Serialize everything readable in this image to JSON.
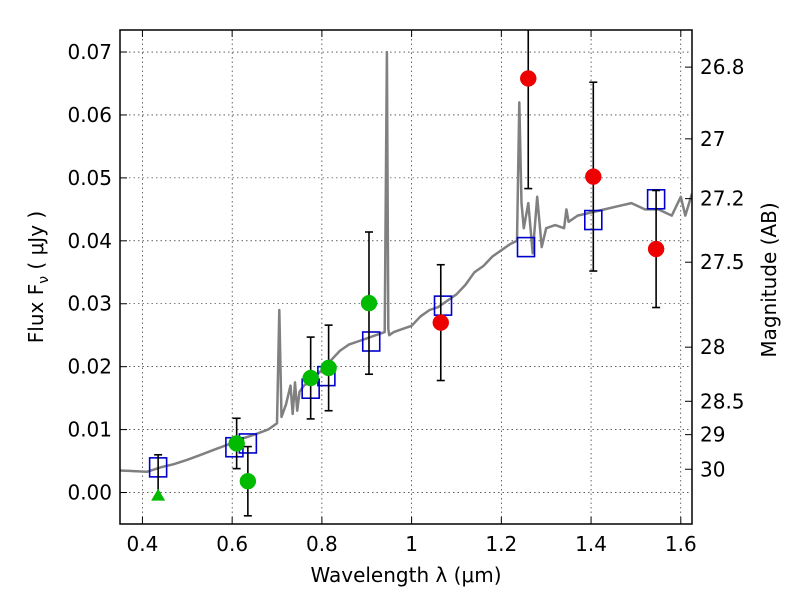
{
  "chart_data": {
    "type": "scatter",
    "xlabel": "Wavelength  λ (μm)",
    "ylabel": "Flux  F",
    "ylabel_sub": "ν",
    "ylabel_unit": "  ( μJy )",
    "y2label": "Magnitude (AB)",
    "xlim": [
      0.35,
      1.625
    ],
    "ylim": [
      -0.005,
      0.0735
    ],
    "grid": true,
    "x_ticks": [
      0.4,
      0.6,
      0.8,
      1.0,
      1.2,
      1.4,
      1.6
    ],
    "x_tick_labels": [
      "0.4",
      "0.6",
      "0.8",
      "1",
      "1.2",
      "1.4",
      "1.6"
    ],
    "y_ticks": [
      0.0,
      0.01,
      0.02,
      0.03,
      0.04,
      0.05,
      0.06,
      0.07
    ],
    "y_tick_labels": [
      "0.00",
      "0.01",
      "0.02",
      "0.03",
      "0.04",
      "0.05",
      "0.06",
      "0.07"
    ],
    "y2_ticks": [
      {
        "flux": 0.0676,
        "label": "26.8"
      },
      {
        "flux": 0.0562,
        "label": "27"
      },
      {
        "flux": 0.0467,
        "label": "27.2"
      },
      {
        "flux": 0.0366,
        "label": "27.5"
      },
      {
        "flux": 0.0231,
        "label": "28"
      },
      {
        "flux": 0.0145,
        "label": "28.5"
      },
      {
        "flux": 0.0092,
        "label": "29"
      },
      {
        "flux": 0.0037,
        "label": "30"
      }
    ],
    "series": [
      {
        "kind": "line",
        "color": "#808080",
        "x": [
          0.35,
          0.38,
          0.41,
          0.44,
          0.47,
          0.5,
          0.53,
          0.56,
          0.59,
          0.62,
          0.65,
          0.68,
          0.7,
          0.705,
          0.71,
          0.72,
          0.73,
          0.735,
          0.74,
          0.745,
          0.75,
          0.76,
          0.78,
          0.8,
          0.82,
          0.84,
          0.86,
          0.88,
          0.9,
          0.92,
          0.94,
          0.945,
          0.948,
          0.95,
          0.96,
          0.98,
          1.0,
          1.02,
          1.04,
          1.06,
          1.08,
          1.1,
          1.12,
          1.14,
          1.16,
          1.18,
          1.2,
          1.22,
          1.235,
          1.24,
          1.245,
          1.25,
          1.26,
          1.27,
          1.28,
          1.29,
          1.3,
          1.32,
          1.34,
          1.345,
          1.35,
          1.37,
          1.4,
          1.43,
          1.46,
          1.49,
          1.52,
          1.55,
          1.58,
          1.6,
          1.61,
          1.625
        ],
        "y": [
          0.0035,
          0.0034,
          0.0033,
          0.004,
          0.0045,
          0.0052,
          0.006,
          0.0068,
          0.0076,
          0.0085,
          0.0092,
          0.01,
          0.011,
          0.029,
          0.012,
          0.014,
          0.017,
          0.0125,
          0.0175,
          0.013,
          0.016,
          0.017,
          0.018,
          0.0195,
          0.021,
          0.0225,
          0.0235,
          0.024,
          0.0245,
          0.025,
          0.0255,
          0.07,
          0.026,
          0.025,
          0.0255,
          0.026,
          0.0265,
          0.028,
          0.029,
          0.0295,
          0.0305,
          0.0315,
          0.033,
          0.035,
          0.036,
          0.0375,
          0.0385,
          0.0395,
          0.04,
          0.062,
          0.046,
          0.042,
          0.046,
          0.038,
          0.047,
          0.039,
          0.042,
          0.0425,
          0.042,
          0.045,
          0.043,
          0.044,
          0.0445,
          0.045,
          0.0455,
          0.046,
          0.045,
          0.045,
          0.044,
          0.047,
          0.044,
          0.0475
        ]
      },
      {
        "kind": "open-square",
        "color": "#0000cc",
        "x": [
          0.435,
          0.605,
          0.635,
          0.775,
          0.81,
          0.91,
          1.07,
          1.255,
          1.405,
          1.545
        ],
        "y": [
          0.004,
          0.0072,
          0.0078,
          0.0165,
          0.0185,
          0.024,
          0.0297,
          0.039,
          0.0433,
          0.0466
        ]
      },
      {
        "kind": "filled-circle",
        "color": "#00bb00",
        "x": [
          0.61,
          0.635,
          0.775,
          0.815,
          0.905
        ],
        "y": [
          0.0078,
          0.0018,
          0.0182,
          0.0198,
          0.0301
        ],
        "err": [
          0.004,
          0.0055,
          0.0065,
          0.0068,
          0.0113
        ]
      },
      {
        "kind": "filled-circle",
        "color": "#ee0000",
        "x": [
          1.065,
          1.26,
          1.405,
          1.545
        ],
        "y": [
          0.027,
          0.0658,
          0.0502,
          0.0387
        ],
        "err": [
          0.0092,
          0.0175,
          0.015,
          0.0093
        ]
      },
      {
        "kind": "triangle",
        "color": "#00bb00",
        "x": [
          0.435
        ],
        "y": [
          -0.0005
        ],
        "err_up": [
          0.0065
        ]
      }
    ]
  }
}
